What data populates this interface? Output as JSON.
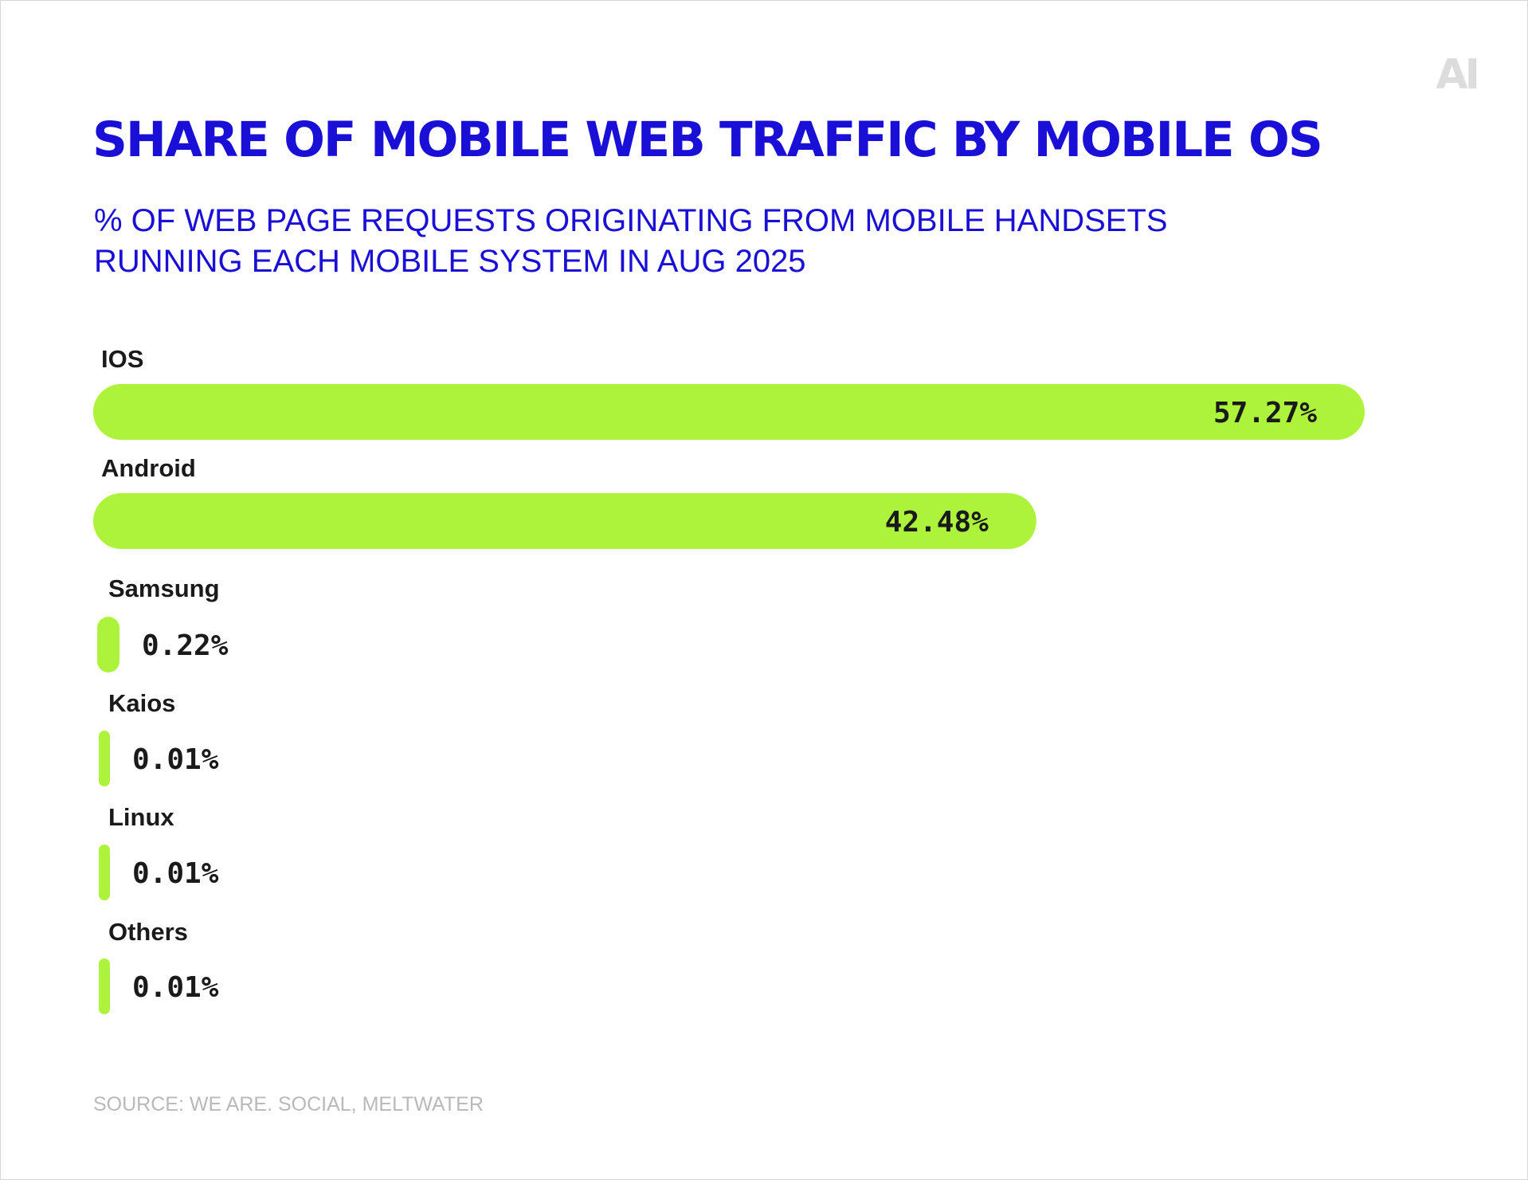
{
  "logo_text": "AI",
  "title": "SHARE OF MOBILE WEB TRAFFIC BY MOBILE OS",
  "subtitle_line1": "% OF WEB PAGE REQUESTS ORIGINATING FROM MOBILE HANDSETS",
  "subtitle_line2": "RUNNING EACH MOBILE SYSTEM IN AUG 2025",
  "source": "SOURCE: WE ARE. SOCIAL, MELTWATER",
  "colors": {
    "title": "#1a0fd6",
    "bar": "#adf23b",
    "text": "#1a1a1a",
    "source": "#b9b9b9"
  },
  "chart_data": {
    "type": "bar",
    "orientation": "horizontal",
    "categories": [
      "IOS",
      "Android",
      "Samsung",
      "Kaios",
      "Linux",
      "Others"
    ],
    "values": [
      57.27,
      42.48,
      0.22,
      0.01,
      0.01,
      0.01
    ],
    "value_labels": [
      "57.27%",
      "42.48%",
      "0.22%",
      "0.01%",
      "0.01%",
      "0.01%"
    ],
    "xlim": [
      0,
      57.27
    ],
    "grid": false,
    "legend": "none"
  }
}
